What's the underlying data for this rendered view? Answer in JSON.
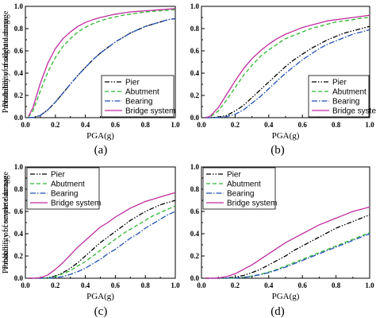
{
  "chart_data": [
    {
      "type": "line",
      "panel_label": "(a)",
      "xlabel": "PGA(g)",
      "ylabel": "Probability of slight damage",
      "xlim": [
        0,
        1.0
      ],
      "ylim": [
        0,
        1.0
      ],
      "xticks": [
        "0.0",
        "0.2",
        "0.4",
        "0.6",
        "0.8",
        "1.0"
      ],
      "yticks": [
        "0.0",
        "0.2",
        "0.4",
        "0.6",
        "0.8",
        "1.0"
      ],
      "legend_position": "bottom-right",
      "x": [
        0.02,
        0.05,
        0.1,
        0.15,
        0.2,
        0.25,
        0.3,
        0.35,
        0.4,
        0.45,
        0.5,
        0.55,
        0.6,
        0.65,
        0.7,
        0.75,
        0.8,
        0.85,
        0.9,
        0.95,
        1.0
      ],
      "series": [
        {
          "name": "Pier",
          "color": "#000000",
          "dash": "6,2,1.5,2,1.5,2",
          "values": [
            0,
            0.002,
            0.02,
            0.07,
            0.14,
            0.22,
            0.3,
            0.38,
            0.45,
            0.52,
            0.58,
            0.63,
            0.68,
            0.72,
            0.76,
            0.79,
            0.82,
            0.84,
            0.86,
            0.88,
            0.89
          ]
        },
        {
          "name": "Abutment",
          "color": "#2eb82e",
          "dash": "5,3",
          "values": [
            0.005,
            0.06,
            0.24,
            0.41,
            0.54,
            0.64,
            0.71,
            0.77,
            0.81,
            0.845,
            0.87,
            0.89,
            0.905,
            0.92,
            0.93,
            0.94,
            0.95,
            0.955,
            0.96,
            0.965,
            0.97
          ]
        },
        {
          "name": "Bearing",
          "color": "#1f4fb4",
          "dash": "7,2,1.5,2",
          "values": [
            0,
            0.002,
            0.02,
            0.07,
            0.14,
            0.22,
            0.3,
            0.38,
            0.45,
            0.52,
            0.58,
            0.63,
            0.68,
            0.72,
            0.76,
            0.79,
            0.82,
            0.84,
            0.86,
            0.88,
            0.89
          ]
        },
        {
          "name": "Bridge system",
          "color": "#c02c9f",
          "dash": "",
          "values": [
            0.01,
            0.09,
            0.31,
            0.49,
            0.62,
            0.71,
            0.77,
            0.82,
            0.855,
            0.88,
            0.9,
            0.915,
            0.93,
            0.94,
            0.95,
            0.955,
            0.96,
            0.965,
            0.97,
            0.975,
            0.98
          ]
        }
      ]
    },
    {
      "type": "line",
      "panel_label": "(b)",
      "xlabel": "PGA(g)",
      "ylabel": "Probability of moderate damage",
      "xlim": [
        0,
        1.0
      ],
      "ylim": [
        0,
        1.0
      ],
      "xticks": [
        "0.0",
        "0.2",
        "0.4",
        "0.6",
        "0.8",
        "1.0"
      ],
      "yticks": [
        "0.0",
        "0.2",
        "0.4",
        "0.6",
        "0.8",
        "1.0"
      ],
      "legend_position": "bottom-right",
      "x": [
        0.02,
        0.05,
        0.1,
        0.15,
        0.2,
        0.25,
        0.3,
        0.35,
        0.4,
        0.45,
        0.5,
        0.55,
        0.6,
        0.65,
        0.7,
        0.75,
        0.8,
        0.85,
        0.9,
        0.95,
        1.0
      ],
      "series": [
        {
          "name": "Pier",
          "color": "#000000",
          "dash": "6,2,1.5,2,1.5,2",
          "values": [
            0,
            0,
            0.005,
            0.02,
            0.06,
            0.11,
            0.18,
            0.25,
            0.32,
            0.39,
            0.46,
            0.52,
            0.57,
            0.62,
            0.66,
            0.7,
            0.73,
            0.76,
            0.78,
            0.8,
            0.82
          ]
        },
        {
          "name": "Abutment",
          "color": "#2eb82e",
          "dash": "5,3",
          "values": [
            0,
            0.005,
            0.06,
            0.16,
            0.27,
            0.38,
            0.47,
            0.55,
            0.61,
            0.66,
            0.71,
            0.74,
            0.77,
            0.8,
            0.82,
            0.84,
            0.86,
            0.87,
            0.88,
            0.895,
            0.9
          ]
        },
        {
          "name": "Bearing",
          "color": "#1f4fb4",
          "dash": "7,2,1.5,2",
          "values": [
            0,
            0,
            0.002,
            0.01,
            0.03,
            0.07,
            0.13,
            0.19,
            0.26,
            0.33,
            0.4,
            0.46,
            0.52,
            0.57,
            0.62,
            0.66,
            0.69,
            0.72,
            0.75,
            0.77,
            0.79
          ]
        },
        {
          "name": "Bridge system",
          "color": "#c02c9f",
          "dash": "",
          "values": [
            0,
            0.01,
            0.09,
            0.21,
            0.33,
            0.44,
            0.53,
            0.6,
            0.66,
            0.71,
            0.75,
            0.78,
            0.81,
            0.83,
            0.85,
            0.87,
            0.88,
            0.89,
            0.9,
            0.91,
            0.92
          ]
        }
      ]
    },
    {
      "type": "line",
      "panel_label": "(c)",
      "xlabel": "PGA(g)",
      "ylabel": "Probability of severe damage",
      "xlim": [
        0,
        1.0
      ],
      "ylim": [
        0,
        1.0
      ],
      "xticks": [
        "0.0",
        "0.2",
        "0.4",
        "0.6",
        "0.8",
        "1.0"
      ],
      "yticks": [
        "0.0",
        "0.2",
        "0.4",
        "0.6",
        "0.8",
        "1.0"
      ],
      "legend_position": "top-left",
      "x": [
        0.02,
        0.05,
        0.1,
        0.15,
        0.2,
        0.25,
        0.3,
        0.35,
        0.4,
        0.45,
        0.5,
        0.55,
        0.6,
        0.65,
        0.7,
        0.75,
        0.8,
        0.85,
        0.9,
        0.95,
        1.0
      ],
      "series": [
        {
          "name": "Pier",
          "color": "#000000",
          "dash": "6,2,1.5,2,1.5,2",
          "values": [
            0,
            0,
            0,
            0.005,
            0.02,
            0.05,
            0.09,
            0.14,
            0.2,
            0.26,
            0.32,
            0.37,
            0.42,
            0.47,
            0.52,
            0.56,
            0.6,
            0.63,
            0.66,
            0.68,
            0.7
          ]
        },
        {
          "name": "Abutment",
          "color": "#2eb82e",
          "dash": "5,3",
          "values": [
            0,
            0,
            0,
            0.003,
            0.015,
            0.04,
            0.07,
            0.11,
            0.15,
            0.2,
            0.25,
            0.3,
            0.35,
            0.4,
            0.44,
            0.48,
            0.52,
            0.56,
            0.59,
            0.62,
            0.65
          ]
        },
        {
          "name": "Bearing",
          "color": "#1f4fb4",
          "dash": "7,2,1.5,2",
          "values": [
            0,
            0,
            0,
            0.001,
            0.005,
            0.015,
            0.035,
            0.06,
            0.09,
            0.13,
            0.17,
            0.22,
            0.26,
            0.31,
            0.36,
            0.4,
            0.45,
            0.49,
            0.53,
            0.57,
            0.6
          ]
        },
        {
          "name": "Bridge system",
          "color": "#c02c9f",
          "dash": "",
          "values": [
            0,
            0,
            0.005,
            0.03,
            0.08,
            0.14,
            0.21,
            0.28,
            0.34,
            0.4,
            0.46,
            0.5,
            0.55,
            0.59,
            0.63,
            0.66,
            0.69,
            0.71,
            0.73,
            0.75,
            0.77
          ]
        }
      ]
    },
    {
      "type": "line",
      "panel_label": "(d)",
      "xlabel": "PGA(g)",
      "ylabel": "Probability of complete damage",
      "xlim": [
        0,
        1.0
      ],
      "ylim": [
        0,
        1.0
      ],
      "xticks": [
        "0.0",
        "0.2",
        "0.4",
        "0.6",
        "0.8",
        "1.0"
      ],
      "yticks": [
        "0.0",
        "0.2",
        "0.4",
        "0.6",
        "0.8",
        "1.0"
      ],
      "legend_position": "top-left",
      "x": [
        0.02,
        0.05,
        0.1,
        0.15,
        0.2,
        0.25,
        0.3,
        0.35,
        0.4,
        0.45,
        0.5,
        0.55,
        0.6,
        0.65,
        0.7,
        0.75,
        0.8,
        0.85,
        0.9,
        0.95,
        1.0
      ],
      "series": [
        {
          "name": "Pier",
          "color": "#000000",
          "dash": "6,2,1.5,2,1.5,2",
          "values": [
            0,
            0,
            0,
            0.002,
            0.01,
            0.025,
            0.05,
            0.08,
            0.12,
            0.16,
            0.2,
            0.25,
            0.29,
            0.33,
            0.37,
            0.41,
            0.45,
            0.48,
            0.51,
            0.54,
            0.57
          ]
        },
        {
          "name": "Abutment",
          "color": "#2eb82e",
          "dash": "5,3",
          "values": [
            0,
            0,
            0,
            0,
            0.002,
            0.008,
            0.02,
            0.035,
            0.055,
            0.08,
            0.11,
            0.14,
            0.17,
            0.2,
            0.23,
            0.26,
            0.29,
            0.32,
            0.35,
            0.38,
            0.41
          ]
        },
        {
          "name": "Bearing",
          "color": "#1f4fb4",
          "dash": "7,2,1.5,2",
          "values": [
            0,
            0,
            0,
            0,
            0.002,
            0.007,
            0.018,
            0.032,
            0.05,
            0.075,
            0.1,
            0.13,
            0.16,
            0.19,
            0.22,
            0.25,
            0.28,
            0.31,
            0.34,
            0.37,
            0.4
          ]
        },
        {
          "name": "Bridge system",
          "color": "#c02c9f",
          "dash": "",
          "values": [
            0,
            0,
            0.002,
            0.015,
            0.04,
            0.08,
            0.12,
            0.17,
            0.22,
            0.27,
            0.32,
            0.36,
            0.4,
            0.44,
            0.48,
            0.51,
            0.54,
            0.57,
            0.6,
            0.62,
            0.64
          ]
        }
      ]
    }
  ]
}
